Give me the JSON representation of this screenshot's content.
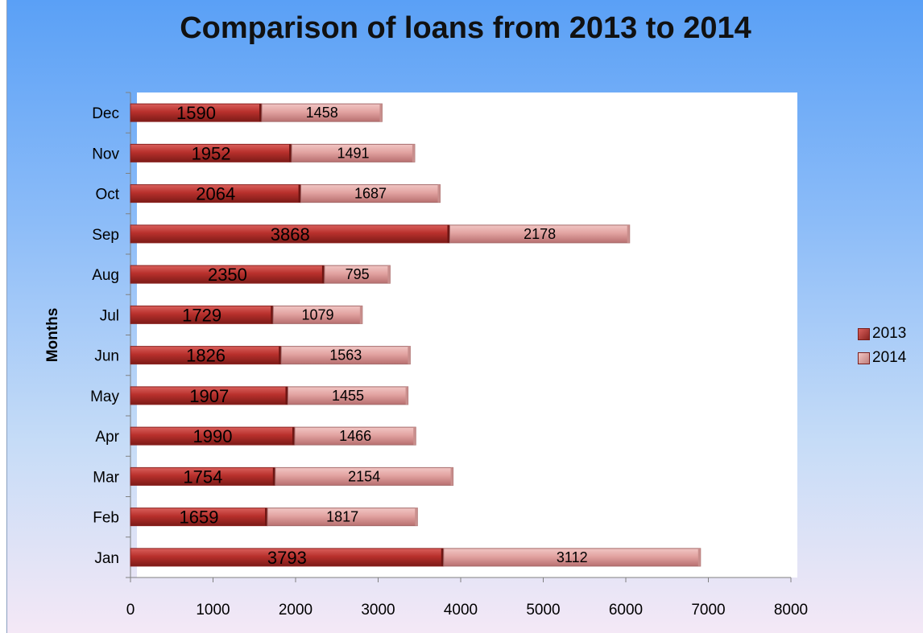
{
  "chart_data": {
    "type": "bar",
    "orientation": "horizontal",
    "stacked": true,
    "title": "Comparison of loans from 2013 to 2014",
    "xlabel": "",
    "ylabel": "Months",
    "xlim": [
      0,
      8000
    ],
    "x_ticks": [
      "0",
      "1000",
      "2000",
      "3000",
      "4000",
      "5000",
      "6000",
      "7000",
      "8000"
    ],
    "categories": [
      "Jan",
      "Feb",
      "Mar",
      "Apr",
      "May",
      "Jun",
      "Jul",
      "Aug",
      "Sep",
      "Oct",
      "Nov",
      "Dec"
    ],
    "series": [
      {
        "name": "2013",
        "color": "#c0504d",
        "values": [
          3793,
          1659,
          1754,
          1990,
          1907,
          1826,
          1729,
          2350,
          3868,
          2064,
          1952,
          1590
        ]
      },
      {
        "name": "2014",
        "color": "#e6b0ae",
        "values": [
          3112,
          1817,
          2154,
          1466,
          1455,
          1563,
          1079,
          795,
          2178,
          1687,
          1491,
          1458
        ]
      }
    ],
    "grid": false,
    "legend_position": "right",
    "data_labels": true
  }
}
